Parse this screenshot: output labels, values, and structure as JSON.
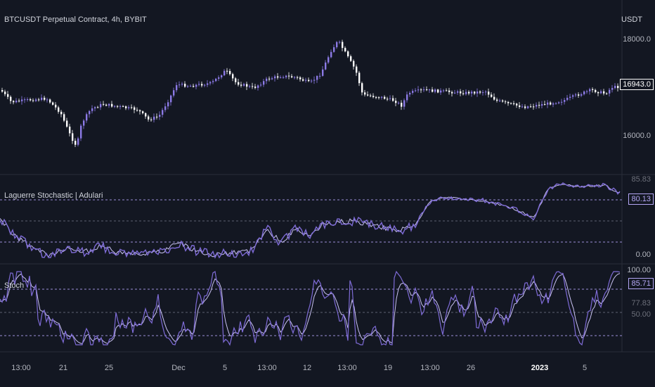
{
  "header": {
    "title": "BTCUSDT Perpetual Contract, 4h, BYBIT",
    "currency": "USDT"
  },
  "price_pane": {
    "axis": [
      "18000.0",
      "16000.0"
    ],
    "last_price": "16943.0"
  },
  "laguerre_pane": {
    "title": "Laguerre Stochastic | Adulari",
    "axis_top": "85.83",
    "axis_bottom": "0.00",
    "current": "80.13"
  },
  "stoch_pane": {
    "title": "Stoch",
    "axis_top": "100.00",
    "k": "85.71",
    "d": "77.83",
    "axis_mid": "50.00"
  },
  "time_axis": [
    "13:00",
    "21",
    "25",
    "Dec",
    "5",
    "13:00",
    "12",
    "13:00",
    "19",
    "13:00",
    "26",
    "2023",
    "5"
  ],
  "colors": {
    "background": "#131722",
    "candle_up": "#8c7ae6",
    "candle_down": "#ffffff",
    "line": "#7e6bd6",
    "level": "#b4a7f5"
  }
}
